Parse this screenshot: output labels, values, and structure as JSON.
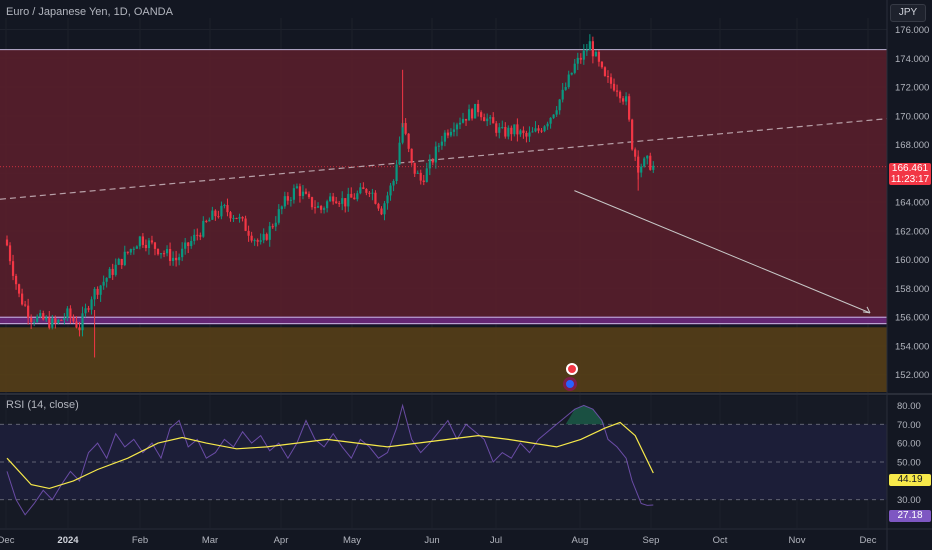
{
  "header": {
    "title": "Euro / Japanese Yen, 1D, OANDA",
    "currency_button": "JPY"
  },
  "rsi_panel": {
    "title": "RSI (14, close)"
  },
  "last_price": {
    "value": "166.461",
    "countdown": "11:23:17"
  },
  "rsi_values": {
    "sma": "44.19",
    "rsi": "27.18"
  },
  "colors": {
    "up": "#089981",
    "down": "#f23645",
    "zone_resistance": "#5d1f2b",
    "zone_support": "#5a4116",
    "rsi_line": "#7e57c2",
    "rsi_sma": "#f7e94a"
  },
  "chart_data": [
    {
      "type": "candlestick",
      "title": "Euro / Japanese Yen, 1D, OANDA",
      "ylim": [
        150.8,
        176.8
      ],
      "y_ticks": [
        152,
        154,
        156,
        158,
        160,
        162,
        164,
        166,
        168,
        170,
        172,
        174,
        176
      ],
      "y_tick_labels": [
        "152.000",
        "154.000",
        "156.000",
        "158.000",
        "160.000",
        "162.000",
        "164.000",
        "166.000",
        "168.000",
        "170.000",
        "172.000",
        "174.000",
        "176.000"
      ],
      "x_tick_labels": [
        "Dec",
        "2024",
        "Feb",
        "Mar",
        "Apr",
        "May",
        "Jun",
        "Jul",
        "Aug",
        "Sep",
        "Oct",
        "Nov",
        "Dec"
      ],
      "close_path": [
        [
          0,
          161.0
        ],
        [
          4,
          157.5
        ],
        [
          8,
          156.0
        ],
        [
          12,
          155.8
        ],
        [
          16,
          155.5
        ],
        [
          20,
          156.2
        ],
        [
          24,
          155.3
        ],
        [
          28,
          157.5
        ],
        [
          32,
          158.5
        ],
        [
          36,
          159.5
        ],
        [
          40,
          160.5
        ],
        [
          44,
          161.5
        ],
        [
          48,
          161.0
        ],
        [
          52,
          160.5
        ],
        [
          56,
          160.0
        ],
        [
          60,
          161.0
        ],
        [
          64,
          162.0
        ],
        [
          68,
          163.0
        ],
        [
          72,
          163.5
        ],
        [
          76,
          163.0
        ],
        [
          80,
          162.0
        ],
        [
          84,
          161.0
        ],
        [
          88,
          162.5
        ],
        [
          92,
          164.0
        ],
        [
          96,
          165.0
        ],
        [
          100,
          164.0
        ],
        [
          104,
          163.5
        ],
        [
          108,
          164.5
        ],
        [
          112,
          164.0
        ],
        [
          116,
          164.5
        ],
        [
          120,
          165.0
        ],
        [
          124,
          163.5
        ],
        [
          128,
          165.5
        ],
        [
          131,
          169.5
        ],
        [
          134,
          166.5
        ],
        [
          137,
          165.5
        ],
        [
          140,
          166.5
        ],
        [
          144,
          168.5
        ],
        [
          148,
          169.5
        ],
        [
          152,
          170.0
        ],
        [
          156,
          170.5
        ],
        [
          160,
          169.5
        ],
        [
          164,
          168.8
        ],
        [
          168,
          169.0
        ],
        [
          172,
          168.5
        ],
        [
          176,
          169.0
        ],
        [
          180,
          170.0
        ],
        [
          184,
          171.5
        ],
        [
          188,
          173.5
        ],
        [
          191,
          174.3
        ],
        [
          193,
          175.0
        ],
        [
          195,
          174.0
        ],
        [
          198,
          172.5
        ],
        [
          202,
          172.0
        ],
        [
          205,
          171.0
        ],
        [
          207,
          168.0
        ],
        [
          209,
          166.5
        ],
        [
          212,
          166.8
        ],
        [
          214,
          166.46
        ]
      ],
      "horizontal_lines": [
        174.6,
        156.0,
        155.55,
        166.46
      ],
      "zones": [
        {
          "from": 156.0,
          "to": 174.6,
          "color": "#5d1f2b"
        },
        {
          "from": 150.8,
          "to": 155.3,
          "color": "#5a4116"
        }
      ],
      "trendline": [
        [
          0,
          164.2
        ],
        [
          323,
          169.8
        ]
      ],
      "projection_arrow": [
        [
          170,
          164.8
        ],
        [
          222,
          156.3
        ]
      ],
      "last": 166.461
    },
    {
      "type": "line",
      "title": "RSI (14, close)",
      "ylim": [
        15,
        85
      ],
      "y_ticks": [
        20,
        30,
        40,
        50,
        60,
        70,
        80
      ],
      "y_tick_labels": [
        "20.00",
        "30.00",
        "40.00",
        "50.00",
        "60.00",
        "70.00",
        "80.00"
      ],
      "bands": [
        70,
        30
      ],
      "middle": 50,
      "series": [
        {
          "name": "RSI",
          "color": "#7e57c2",
          "points": [
            [
              0,
              45
            ],
            [
              3,
              30
            ],
            [
              6,
              22
            ],
            [
              9,
              28
            ],
            [
              12,
              35
            ],
            [
              15,
              30
            ],
            [
              18,
              38
            ],
            [
              21,
              45
            ],
            [
              24,
              40
            ],
            [
              27,
              55
            ],
            [
              30,
              60
            ],
            [
              33,
              52
            ],
            [
              36,
              65
            ],
            [
              39,
              58
            ],
            [
              42,
              62
            ],
            [
              45,
              55
            ],
            [
              48,
              60
            ],
            [
              51,
              52
            ],
            [
              54,
              68
            ],
            [
              57,
              72
            ],
            [
              60,
              58
            ],
            [
              63,
              62
            ],
            [
              66,
              52
            ],
            [
              69,
              55
            ],
            [
              72,
              62
            ],
            [
              75,
              58
            ],
            [
              78,
              66
            ],
            [
              81,
              60
            ],
            [
              84,
              64
            ],
            [
              87,
              56
            ],
            [
              90,
              60
            ],
            [
              93,
              52
            ],
            [
              96,
              60
            ],
            [
              99,
              72
            ],
            [
              102,
              62
            ],
            [
              105,
              58
            ],
            [
              108,
              65
            ],
            [
              111,
              58
            ],
            [
              114,
              52
            ],
            [
              117,
              62
            ],
            [
              120,
              58
            ],
            [
              123,
              52
            ],
            [
              126,
              55
            ],
            [
              129,
              68
            ],
            [
              131,
              80
            ],
            [
              134,
              62
            ],
            [
              137,
              55
            ],
            [
              140,
              60
            ],
            [
              143,
              66
            ],
            [
              146,
              72
            ],
            [
              149,
              62
            ],
            [
              152,
              70
            ],
            [
              155,
              66
            ],
            [
              158,
              62
            ],
            [
              161,
              50
            ],
            [
              164,
              55
            ],
            [
              167,
              52
            ],
            [
              170,
              60
            ],
            [
              173,
              55
            ],
            [
              176,
              62
            ],
            [
              179,
              66
            ],
            [
              182,
              70
            ],
            [
              185,
              74
            ],
            [
              188,
              78
            ],
            [
              191,
              80
            ],
            [
              194,
              78
            ],
            [
              197,
              72
            ],
            [
              199,
              62
            ],
            [
              202,
              58
            ],
            [
              205,
              52
            ],
            [
              207,
              40
            ],
            [
              210,
              28
            ],
            [
              212,
              27
            ],
            [
              214,
              27.2
            ]
          ]
        },
        {
          "name": "RSI SMA",
          "color": "#f7e94a",
          "points": [
            [
              0,
              52
            ],
            [
              8,
              38
            ],
            [
              14,
              36
            ],
            [
              22,
              40
            ],
            [
              30,
              46
            ],
            [
              40,
              52
            ],
            [
              50,
              60
            ],
            [
              58,
              63
            ],
            [
              66,
              60
            ],
            [
              76,
              57
            ],
            [
              86,
              58
            ],
            [
              96,
              60
            ],
            [
              106,
              62
            ],
            [
              116,
              60
            ],
            [
              126,
              58
            ],
            [
              136,
              60
            ],
            [
              146,
              62
            ],
            [
              156,
              64
            ],
            [
              166,
              62
            ],
            [
              174,
              60
            ],
            [
              182,
              58
            ],
            [
              190,
              62
            ],
            [
              198,
              68
            ],
            [
              203,
              71
            ],
            [
              208,
              64
            ],
            [
              214,
              44.19
            ]
          ]
        }
      ]
    }
  ]
}
